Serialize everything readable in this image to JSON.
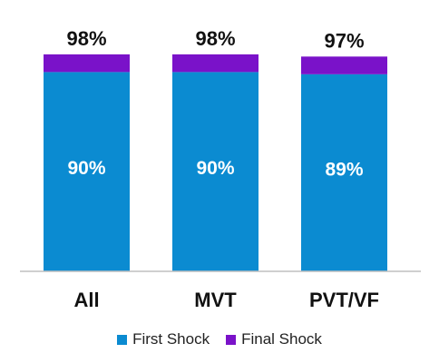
{
  "chart_data": {
    "type": "bar",
    "stacked": true,
    "categories": [
      "All",
      "MVT",
      "PVT/VF"
    ],
    "series": [
      {
        "name": "First Shock",
        "values": [
          90,
          90,
          89
        ],
        "color": "#0b8bd1",
        "labels": [
          "90%",
          "90%",
          "89%"
        ]
      },
      {
        "name": "Final Shock",
        "values": [
          8,
          8,
          8
        ],
        "color": "#7a12c9"
      }
    ],
    "totals": [
      98,
      98,
      97
    ],
    "total_labels": [
      "98%",
      "98%",
      "97%"
    ],
    "ylim": [
      0,
      100
    ],
    "grid": false,
    "legend": "bottom"
  }
}
